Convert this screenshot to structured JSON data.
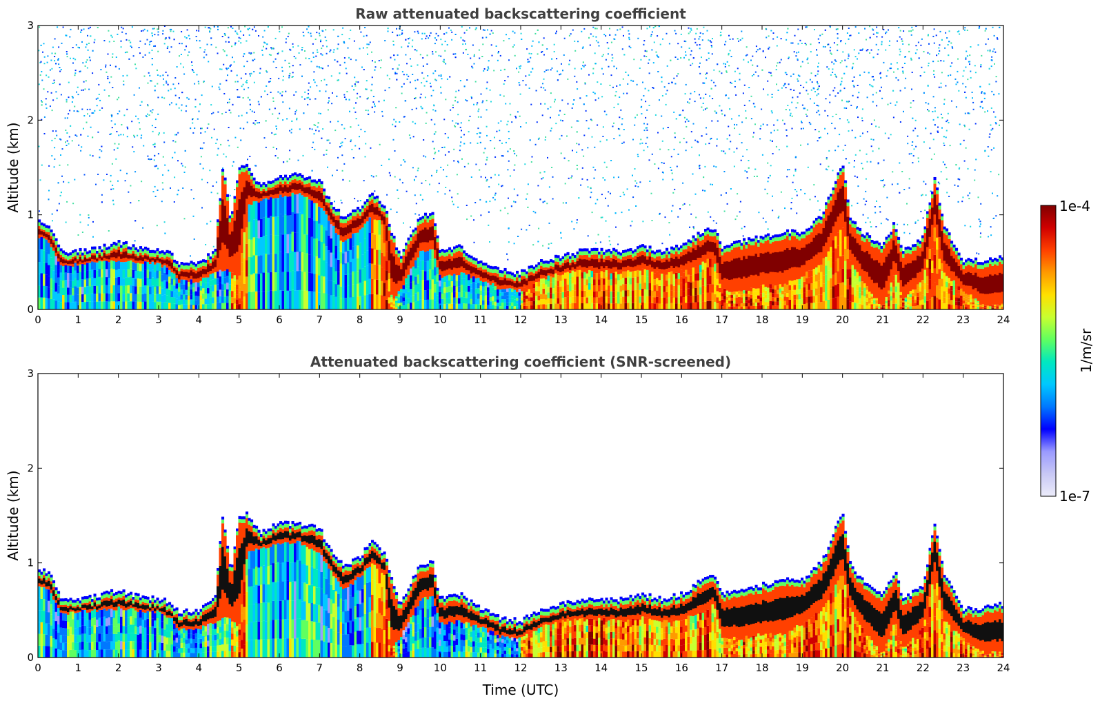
{
  "chart_data": [
    {
      "type": "heatmap",
      "title": "Raw attenuated backscattering coefficient",
      "xlabel": "",
      "ylabel": "Altitude (km)",
      "xlim": [
        0,
        24
      ],
      "ylim": [
        0,
        3
      ],
      "xticks": [
        "0",
        "1",
        "2",
        "3",
        "4",
        "5",
        "6",
        "7",
        "8",
        "9",
        "10",
        "11",
        "12",
        "13",
        "14",
        "15",
        "16",
        "17",
        "18",
        "19",
        "20",
        "21",
        "22",
        "23",
        "24"
      ],
      "yticks": [
        "0",
        "1",
        "2",
        "3"
      ],
      "grid": false,
      "noise_above_boundary_layer": true,
      "layer_top_profile": {
        "time_utc": [
          0,
          0.3,
          0.6,
          1,
          1.5,
          2,
          2.5,
          3,
          3.3,
          3.5,
          4,
          4.4,
          4.6,
          4.8,
          5,
          5.2,
          5.5,
          6,
          6.5,
          7,
          7.3,
          7.6,
          8,
          8.3,
          8.6,
          8.8,
          9,
          9.5,
          9.8,
          10,
          10.5,
          11,
          11.5,
          12,
          12.5,
          13,
          13.5,
          14,
          14.5,
          15,
          15.5,
          16,
          16.5,
          16.8,
          17,
          17.5,
          18,
          18.5,
          19,
          19.5,
          20,
          20.2,
          20.5,
          21,
          21.3,
          21.5,
          22,
          22.3,
          22.5,
          23,
          23.5,
          24
        ],
        "top_km": [
          0.88,
          0.82,
          0.55,
          0.55,
          0.58,
          0.65,
          0.58,
          0.55,
          0.52,
          0.42,
          0.42,
          0.55,
          1.45,
          0.85,
          1.45,
          1.45,
          1.25,
          1.35,
          1.35,
          1.3,
          1.05,
          0.9,
          1.0,
          1.15,
          1.05,
          0.75,
          0.5,
          0.9,
          0.95,
          0.55,
          0.6,
          0.45,
          0.35,
          0.32,
          0.45,
          0.5,
          0.55,
          0.55,
          0.55,
          0.6,
          0.55,
          0.6,
          0.75,
          0.8,
          0.6,
          0.65,
          0.7,
          0.75,
          0.75,
          0.95,
          1.5,
          0.9,
          0.75,
          0.6,
          0.85,
          0.55,
          0.7,
          1.35,
          0.85,
          0.45,
          0.45,
          0.5
        ]
      },
      "layer_base_profile": {
        "time_utc": [
          0,
          0.3,
          0.6,
          1,
          1.5,
          2,
          2.5,
          3,
          3.3,
          3.5,
          4,
          4.4,
          4.6,
          4.8,
          5,
          5.2,
          5.5,
          6,
          6.5,
          7,
          7.3,
          7.6,
          8,
          8.3,
          8.6,
          8.8,
          9,
          9.5,
          9.8,
          10,
          10.5,
          11,
          11.5,
          12,
          12.5,
          13,
          13.5,
          14,
          14.5,
          15,
          15.5,
          16,
          16.5,
          16.8,
          17,
          17.5,
          18,
          18.5,
          19,
          19.5,
          20,
          20.2,
          20.5,
          21,
          21.3,
          21.5,
          22,
          22.3,
          22.5,
          23,
          23.5,
          24
        ],
        "base_km": [
          0.78,
          0.7,
          0.45,
          0.48,
          0.5,
          0.52,
          0.5,
          0.48,
          0.42,
          0.3,
          0.3,
          0.38,
          0.42,
          0.4,
          0.3,
          1.1,
          1.15,
          1.2,
          1.22,
          1.1,
          0.9,
          0.7,
          0.85,
          0.98,
          0.9,
          0.1,
          0.2,
          0.6,
          0.65,
          0.35,
          0.38,
          0.32,
          0.22,
          0.2,
          0.32,
          0.38,
          0.4,
          0.4,
          0.38,
          0.42,
          0.38,
          0.4,
          0.48,
          0.55,
          0.2,
          0.2,
          0.25,
          0.25,
          0.35,
          0.5,
          0.9,
          0.5,
          0.3,
          0.02,
          0.4,
          0.1,
          0.3,
          0.9,
          0.4,
          0.2,
          0.05,
          0.05
        ]
      }
    },
    {
      "type": "heatmap",
      "title": "Attenuated backscattering coefficient (SNR-screened)",
      "xlabel": "Time (UTC)",
      "ylabel": "Altitude (km)",
      "xlim": [
        0,
        24
      ],
      "ylim": [
        0,
        3
      ],
      "xticks": [
        "0",
        "1",
        "2",
        "3",
        "4",
        "5",
        "6",
        "7",
        "8",
        "9",
        "10",
        "11",
        "12",
        "13",
        "14",
        "15",
        "16",
        "17",
        "18",
        "19",
        "20",
        "21",
        "22",
        "23",
        "24"
      ],
      "yticks": [
        "0",
        "1",
        "2",
        "3"
      ],
      "grid": false,
      "noise_above_boundary_layer": false,
      "layer_top_profile": "same as panel 1",
      "layer_base_profile": "same as panel 1"
    }
  ],
  "colorbar": {
    "label": "1/m/sr",
    "max_label": "1e-4",
    "min_label": "1e-7",
    "colormap": [
      "#ececfa",
      "#c8c8f5",
      "#9a9aff",
      "#0000ff",
      "#0078ff",
      "#00c8ff",
      "#00e8c0",
      "#60ff60",
      "#c8ff30",
      "#ffe000",
      "#ff9a00",
      "#ff4000",
      "#d00000",
      "#800000"
    ],
    "log_scale": true
  }
}
